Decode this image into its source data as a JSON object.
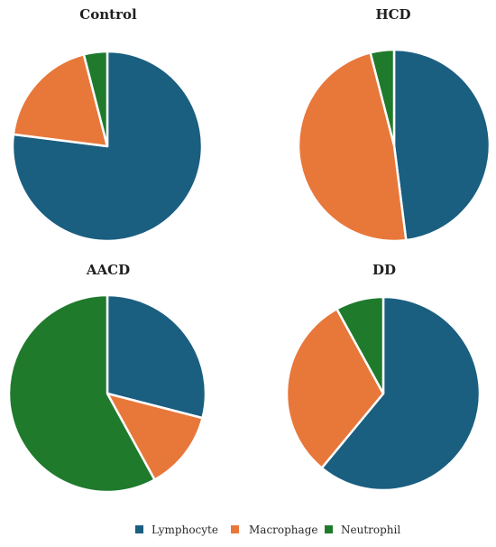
{
  "chart_data": [
    {
      "type": "pie",
      "title": "Control",
      "categories": [
        "Lymphocyte",
        "Macrophage",
        "Neutrophil"
      ],
      "values": [
        77,
        19,
        4
      ]
    },
    {
      "type": "pie",
      "title": "HCD",
      "categories": [
        "Lymphocyte",
        "Macrophage",
        "Neutrophil"
      ],
      "values": [
        48,
        48,
        4
      ]
    },
    {
      "type": "pie",
      "title": "AACD",
      "categories": [
        "Lymphocyte",
        "Macrophage",
        "Neutrophil"
      ],
      "values": [
        29,
        13,
        58
      ]
    },
    {
      "type": "pie",
      "title": "DD",
      "categories": [
        "Lymphocyte",
        "Macrophage",
        "Neutrophil"
      ],
      "values": [
        61,
        31,
        8
      ]
    }
  ],
  "legend": {
    "items": [
      {
        "label": "Lymphocyte",
        "color": "#1a5e80"
      },
      {
        "label": "Macrophage",
        "color": "#e8773a"
      },
      {
        "label": "Neutrophil",
        "color": "#1f7a2c"
      }
    ]
  }
}
